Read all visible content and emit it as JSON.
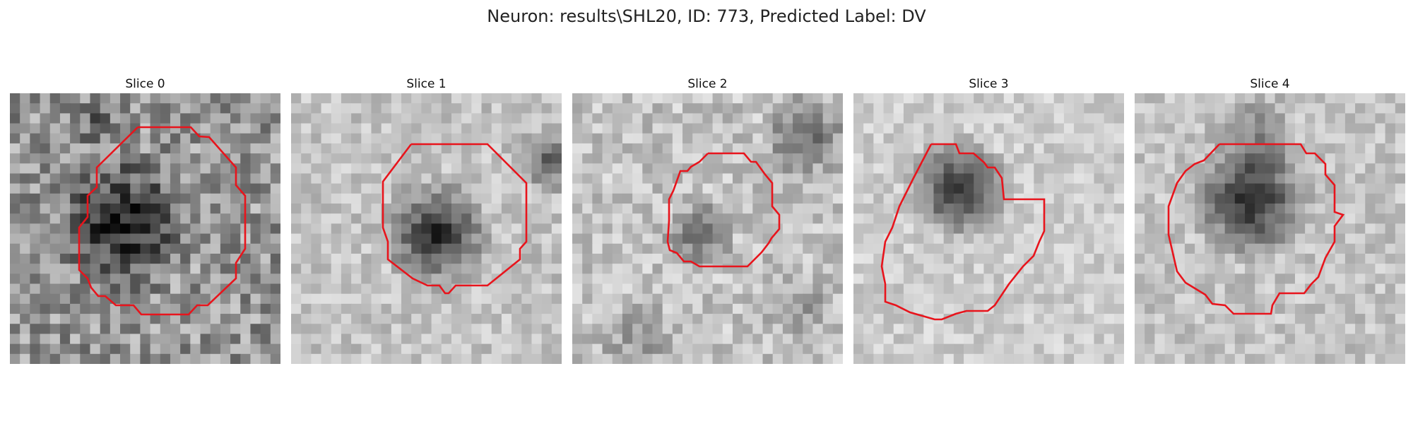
{
  "figure": {
    "title": "Neuron: results\\SHL20, ID: 773, Predicted Label: DV"
  },
  "panels": [
    {
      "title": "Slice 0",
      "dark_blob": {
        "intensity": 0.7
      },
      "contour_color": "#e8141c",
      "icon": "grayscale-microscopy-patch"
    },
    {
      "title": "Slice 1",
      "dark_blob": {
        "intensity": 0.85
      },
      "contour_color": "#e8141c",
      "icon": "grayscale-microscopy-patch"
    },
    {
      "title": "Slice 2",
      "dark_blob": {
        "intensity": 0.55
      },
      "contour_color": "#e8141c",
      "icon": "grayscale-microscopy-patch"
    },
    {
      "title": "Slice 3",
      "dark_blob": {
        "intensity": 0.9
      },
      "contour_color": "#e8141c",
      "icon": "grayscale-microscopy-patch"
    },
    {
      "title": "Slice 4",
      "dark_blob": {
        "intensity": 0.9
      },
      "contour_color": "#e8141c",
      "icon": "grayscale-microscopy-patch"
    }
  ]
}
